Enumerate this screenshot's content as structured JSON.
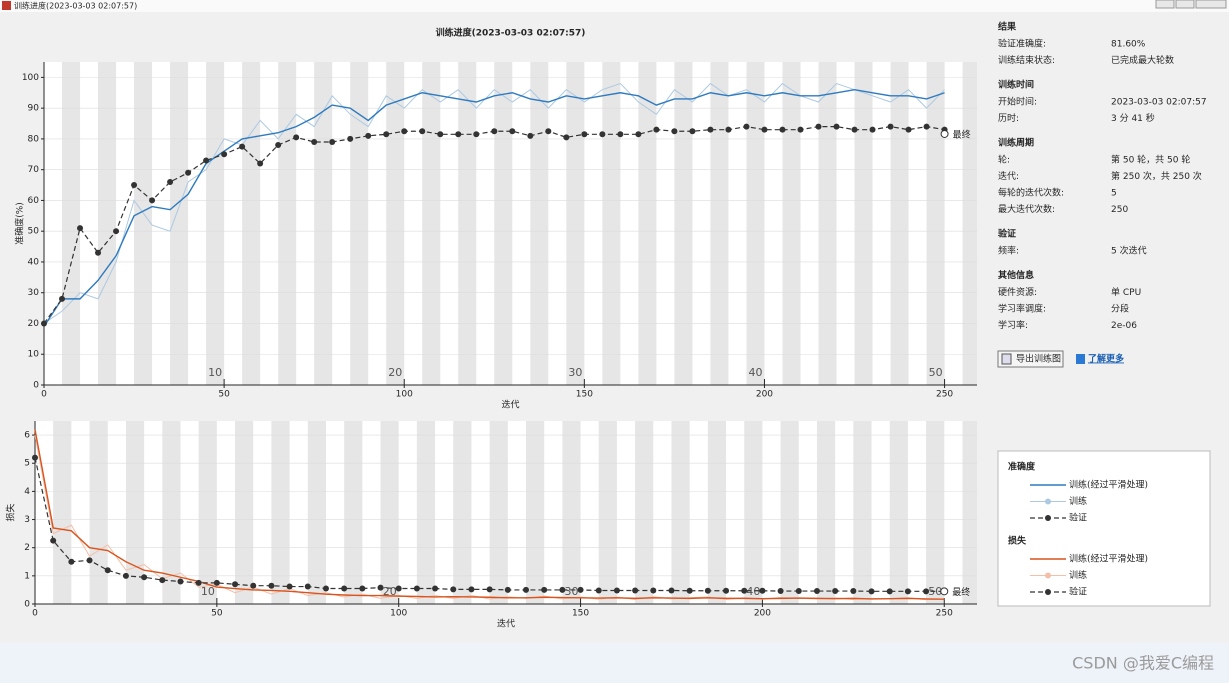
{
  "window": {
    "title": "训练进度(2023-03-03 02:07:57)"
  },
  "chart_data": [
    {
      "type": "line",
      "title": "训练进度(2023-03-03 02:07:57)",
      "xlabel": "迭代",
      "ylabel": "准确度(%)",
      "legend_title": "准确度",
      "xlim": [
        0,
        259
      ],
      "ylim": [
        0,
        105
      ],
      "xticks": [
        0,
        50,
        100,
        150,
        200,
        250
      ],
      "yticks": [
        0,
        10,
        20,
        30,
        40,
        50,
        60,
        70,
        80,
        90,
        100
      ],
      "grid": true,
      "epoch_ticks": [
        {
          "value": 50,
          "label": "10"
        },
        {
          "value": 100,
          "label": "20"
        },
        {
          "value": 150,
          "label": "30"
        },
        {
          "value": 200,
          "label": "40"
        },
        {
          "value": 250,
          "label": "50"
        }
      ],
      "final": {
        "label": "最终",
        "value": 81.6
      },
      "x": [
        0,
        5,
        10,
        15,
        20,
        25,
        30,
        35,
        40,
        45,
        50,
        55,
        60,
        65,
        70,
        75,
        80,
        85,
        90,
        95,
        100,
        105,
        110,
        115,
        120,
        125,
        130,
        135,
        140,
        145,
        150,
        155,
        160,
        165,
        170,
        175,
        180,
        185,
        190,
        195,
        200,
        205,
        210,
        215,
        220,
        225,
        230,
        235,
        240,
        245,
        250
      ],
      "series": [
        {
          "name": "训练",
          "color": "#adc9e2",
          "dash": false,
          "markers": false,
          "width": 1,
          "values": [
            20,
            24,
            30,
            28,
            40,
            60,
            52,
            50,
            66,
            70,
            80,
            78,
            86,
            80,
            88,
            84,
            94,
            88,
            84,
            94,
            90,
            96,
            92,
            96,
            90,
            96,
            92,
            96,
            90,
            96,
            92,
            96,
            98,
            92,
            88,
            96,
            92,
            98,
            94,
            96,
            92,
            98,
            94,
            92,
            98,
            96,
            94,
            92,
            96,
            90,
            96
          ]
        },
        {
          "name": "训练(经过平滑处理)",
          "color": "#2f7bbf",
          "dash": false,
          "markers": false,
          "width": 1.4,
          "values": [
            19,
            28,
            28,
            34,
            42,
            55,
            58,
            57,
            62,
            72,
            76,
            80,
            81,
            82,
            84,
            87,
            91,
            90,
            86,
            91,
            93,
            95,
            94,
            93,
            92,
            94,
            95,
            93,
            92,
            94,
            93,
            94,
            95,
            94,
            91,
            93,
            93,
            95,
            94,
            95,
            94,
            95,
            94,
            94,
            95,
            96,
            95,
            94,
            94,
            93,
            95
          ]
        },
        {
          "name": "验证",
          "color": "#333333",
          "dash": true,
          "markers": true,
          "width": 1.2,
          "values": [
            20,
            28,
            51,
            43,
            50,
            65,
            60,
            66,
            69,
            73,
            75,
            77.5,
            72,
            78,
            80.5,
            79,
            79,
            80,
            81,
            81.5,
            82.5,
            82.5,
            81.5,
            81.5,
            81.5,
            82.5,
            82.5,
            81,
            82.5,
            80.5,
            81.5,
            81.5,
            81.5,
            81.5,
            83,
            82.5,
            82.5,
            83,
            83,
            84,
            83,
            83,
            83,
            84,
            84,
            83,
            83,
            84,
            83,
            84,
            83
          ]
        }
      ]
    },
    {
      "type": "line",
      "xlabel": "迭代",
      "ylabel": "损失",
      "legend_title": "损失",
      "xlim": [
        0,
        259
      ],
      "ylim": [
        0,
        6.5
      ],
      "xticks": [
        0,
        50,
        100,
        150,
        200,
        250
      ],
      "yticks": [
        0,
        1,
        2,
        3,
        4,
        5,
        6
      ],
      "grid": true,
      "epoch_ticks": [
        {
          "value": 50,
          "label": "10"
        },
        {
          "value": 100,
          "label": "20"
        },
        {
          "value": 150,
          "label": "30"
        },
        {
          "value": 200,
          "label": "40"
        },
        {
          "value": 250,
          "label": "50"
        }
      ],
      "final": {
        "label": "最终",
        "value": 0.45
      },
      "x": [
        0,
        5,
        10,
        15,
        20,
        25,
        30,
        35,
        40,
        45,
        50,
        55,
        60,
        65,
        70,
        75,
        80,
        85,
        90,
        95,
        100,
        105,
        110,
        115,
        120,
        125,
        130,
        135,
        140,
        145,
        150,
        155,
        160,
        165,
        170,
        175,
        180,
        185,
        190,
        195,
        200,
        205,
        210,
        215,
        220,
        225,
        230,
        235,
        240,
        245,
        250
      ],
      "series": [
        {
          "name": "训练",
          "color": "#f2bfa9",
          "dash": false,
          "markers": false,
          "width": 1,
          "values": [
            6.0,
            2.5,
            2.8,
            1.7,
            2.1,
            1.2,
            1.4,
            0.9,
            1.1,
            0.6,
            0.7,
            0.4,
            0.6,
            0.35,
            0.55,
            0.3,
            0.4,
            0.25,
            0.35,
            0.2,
            0.3,
            0.2,
            0.3,
            0.2,
            0.3,
            0.18,
            0.26,
            0.2,
            0.28,
            0.18,
            0.25,
            0.17,
            0.25,
            0.16,
            0.26,
            0.18,
            0.22,
            0.25,
            0.16,
            0.22,
            0.17,
            0.23,
            0.2,
            0.18,
            0.22,
            0.16,
            0.2,
            0.18,
            0.22,
            0.15,
            0.18
          ]
        },
        {
          "name": "训练(经过平滑处理)",
          "color": "#d9541e",
          "dash": false,
          "markers": false,
          "width": 1.4,
          "values": [
            6.2,
            2.7,
            2.6,
            2.0,
            1.9,
            1.5,
            1.2,
            1.1,
            0.95,
            0.8,
            0.6,
            0.55,
            0.5,
            0.48,
            0.45,
            0.4,
            0.35,
            0.32,
            0.3,
            0.3,
            0.28,
            0.27,
            0.25,
            0.26,
            0.25,
            0.24,
            0.22,
            0.22,
            0.24,
            0.23,
            0.22,
            0.21,
            0.22,
            0.2,
            0.22,
            0.21,
            0.2,
            0.22,
            0.2,
            0.2,
            0.19,
            0.2,
            0.21,
            0.2,
            0.19,
            0.2,
            0.18,
            0.19,
            0.2,
            0.18,
            0.17
          ]
        },
        {
          "name": "验证",
          "color": "#333333",
          "dash": true,
          "markers": true,
          "width": 1.2,
          "values": [
            5.2,
            2.25,
            1.5,
            1.55,
            1.2,
            1.0,
            0.95,
            0.85,
            0.8,
            0.75,
            0.75,
            0.7,
            0.65,
            0.65,
            0.62,
            0.62,
            0.55,
            0.55,
            0.55,
            0.58,
            0.55,
            0.55,
            0.55,
            0.52,
            0.52,
            0.52,
            0.5,
            0.5,
            0.5,
            0.5,
            0.5,
            0.48,
            0.48,
            0.48,
            0.48,
            0.48,
            0.47,
            0.47,
            0.47,
            0.47,
            0.47,
            0.46,
            0.46,
            0.46,
            0.46,
            0.46,
            0.45,
            0.45,
            0.45,
            0.45,
            0.45
          ]
        }
      ]
    }
  ],
  "info_panel": {
    "sections": [
      {
        "title": "结果",
        "rows": [
          [
            "验证准确度:",
            "81.60%"
          ],
          [
            "训练结束状态:",
            "已完成最大轮数"
          ]
        ]
      },
      {
        "title": "训练时间",
        "rows": [
          [
            "开始时间:",
            "2023-03-03 02:07:57"
          ],
          [
            "历时:",
            "3 分 41 秒"
          ]
        ]
      },
      {
        "title": "训练周期",
        "rows": [
          [
            "轮:",
            "第 50 轮，共 50 轮"
          ],
          [
            "迭代:",
            "第 250 次，共 250 次"
          ],
          [
            "每轮的迭代次数:",
            "5"
          ],
          [
            "最大迭代次数:",
            "250"
          ]
        ]
      },
      {
        "title": "验证",
        "rows": [
          [
            "频率:",
            "5 次迭代"
          ]
        ]
      },
      {
        "title": "其他信息",
        "rows": [
          [
            "硬件资源:",
            "单 CPU"
          ],
          [
            "学习率调度:",
            "分段"
          ],
          [
            "学习率:",
            "2e-06"
          ]
        ]
      }
    ],
    "buttons": [
      "导出训练图",
      "了解更多"
    ]
  },
  "watermark": "CSDN @我爱C编程"
}
